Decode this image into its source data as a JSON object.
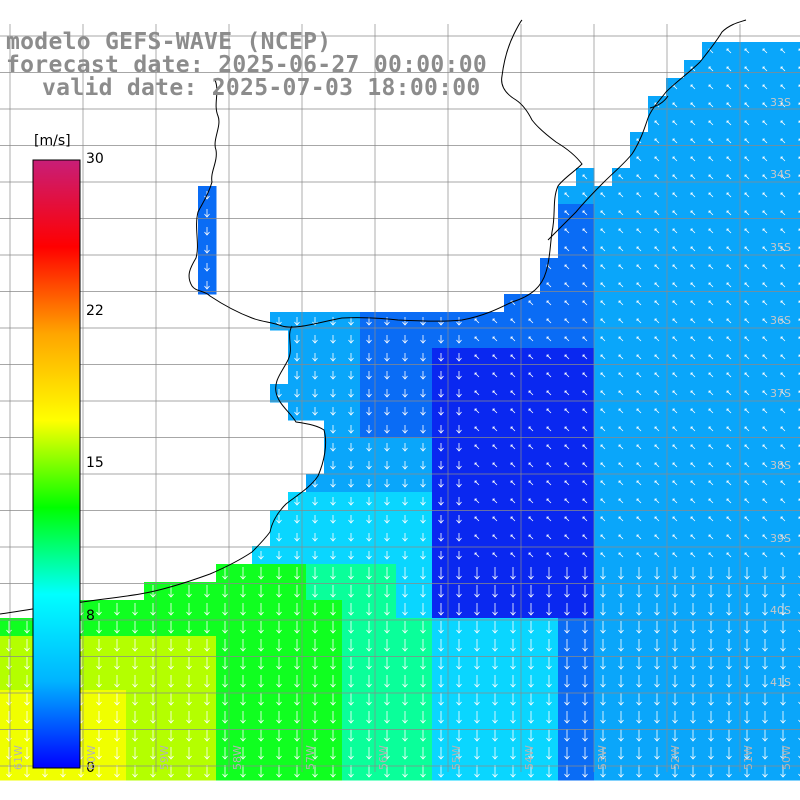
{
  "title": {
    "line1": "modelo GEFS-WAVE (NCEP)",
    "line2": "forecast date: 2025-06-27 00:00:00",
    "line3": "valid date: 2025-07-03 18:00:00"
  },
  "colorbar": {
    "unit": "[m/s]",
    "min": 0,
    "max": 30,
    "ticks": [
      "0",
      "8",
      "15",
      "22",
      "30"
    ],
    "colors": [
      "#0000ff",
      "#00b4ff",
      "#00ffff",
      "#00ff00",
      "#ffff00",
      "#ffa500",
      "#ff0000",
      "#c81e78"
    ]
  },
  "map": {
    "lat_labels": [
      "33S",
      "34S",
      "35S",
      "36S",
      "37S",
      "38S",
      "39S",
      "40S",
      "41S"
    ],
    "lon_labels": [
      "61W",
      "60W",
      "59W",
      "58W",
      "57W",
      "56W",
      "55W",
      "54W",
      "53W",
      "52W",
      "51W",
      "50W"
    ],
    "field_colors": {
      "deep_blue": "#0a28f0",
      "blue": "#0a6cf5",
      "sky": "#0aa6fa",
      "cyan": "#0ad6ff",
      "aqua": "#0aff9a",
      "green": "#10ff20",
      "yellow_green": "#b4ff00",
      "yellow": "#f0ff00"
    }
  }
}
